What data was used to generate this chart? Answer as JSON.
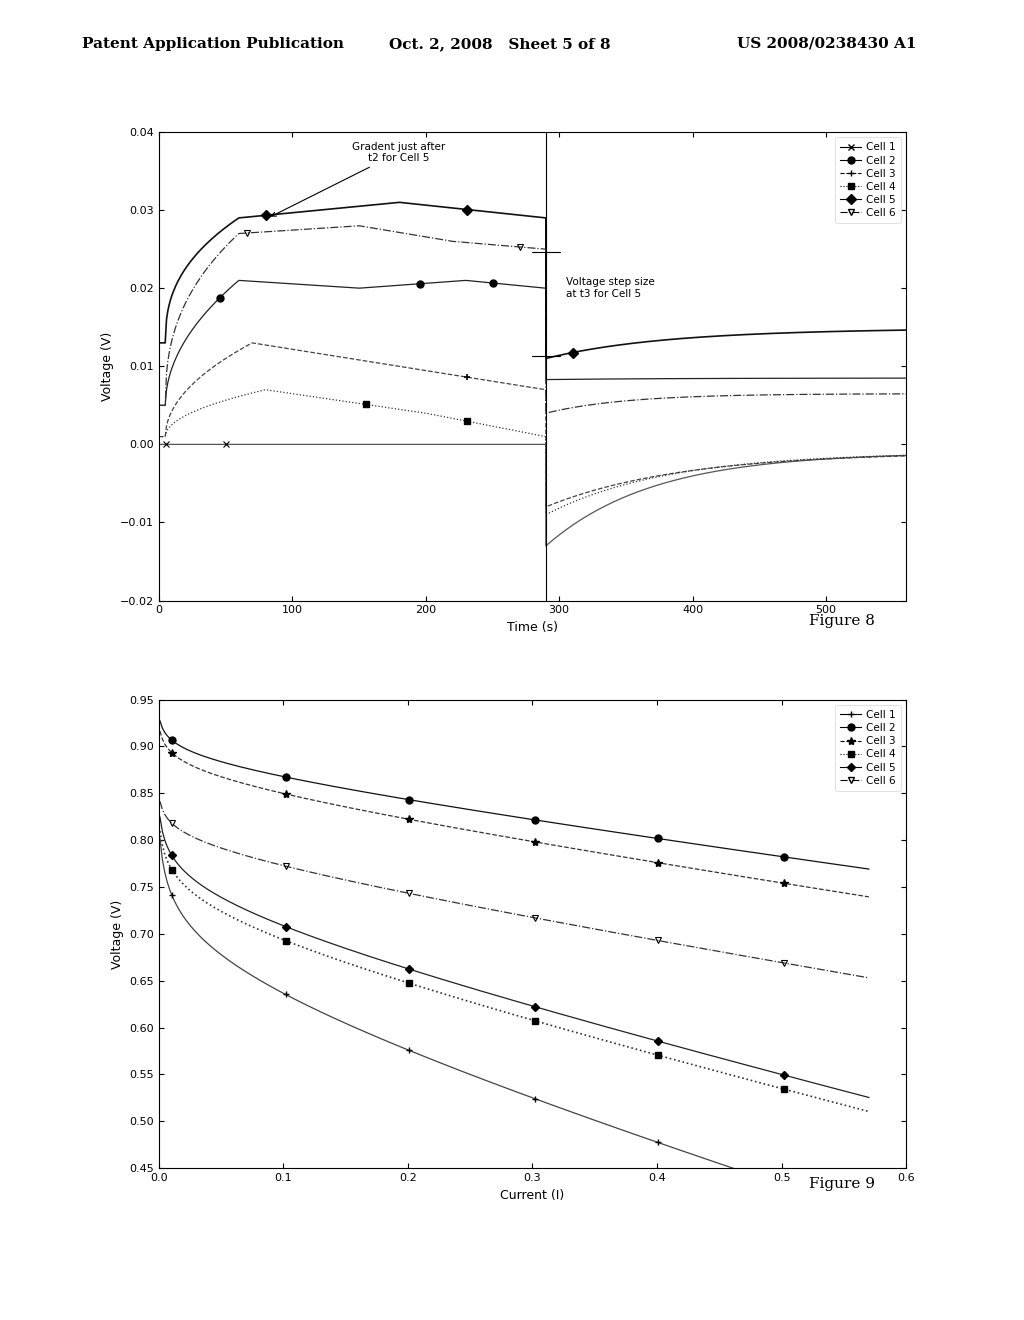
{
  "header_left": "Patent Application Publication",
  "header_center": "Oct. 2, 2008   Sheet 5 of 8",
  "header_right": "US 2008/0238430 A1",
  "fig8_title": "Figure 8",
  "fig9_title": "Figure 9",
  "fig8_xlabel": "Time (s)",
  "fig8_ylabel": "Voltage (V)",
  "fig8_xlim": [
    0,
    560
  ],
  "fig8_ylim": [
    -0.02,
    0.04
  ],
  "fig8_xticks": [
    0,
    100,
    200,
    300,
    400,
    500
  ],
  "fig8_yticks": [
    -0.02,
    -0.01,
    0,
    0.01,
    0.02,
    0.03,
    0.04
  ],
  "fig9_xlabel": "Current (I)",
  "fig9_ylabel": "Voltage (V)",
  "fig9_xlim": [
    0,
    0.6
  ],
  "fig9_ylim": [
    0.45,
    0.95
  ],
  "fig9_xticks": [
    0,
    0.1,
    0.2,
    0.3,
    0.4,
    0.5,
    0.6
  ],
  "fig9_yticks": [
    0.45,
    0.5,
    0.55,
    0.6,
    0.65,
    0.7,
    0.75,
    0.8,
    0.85,
    0.9,
    0.95
  ],
  "annotation1_text": "Gradent just after\nt2 for Cell 5",
  "annotation2_text": "Voltage step size\nat t3 for Cell 5",
  "background_color": "#ffffff"
}
